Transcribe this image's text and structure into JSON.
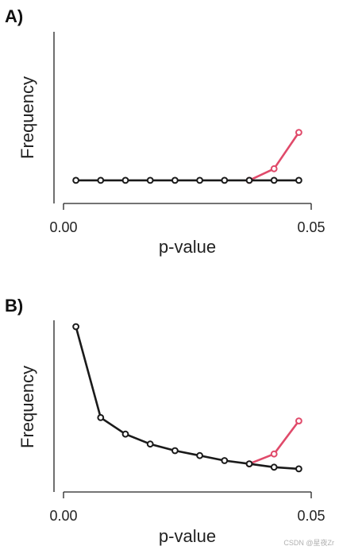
{
  "charts": [
    {
      "panel_label": "A)",
      "type": "line",
      "xlabel": "p-value",
      "ylabel": "Frequency",
      "xticks": [
        {
          "value": 0.0,
          "label": "0.00"
        },
        {
          "value": 0.05,
          "label": "0.05"
        }
      ],
      "xlim": [
        0.0,
        0.05
      ],
      "ylim": [
        0,
        10
      ],
      "series": [
        {
          "color": "#e04a6a",
          "x": [
            0.0375,
            0.0425,
            0.0475
          ],
          "y": [
            1.4,
            2.1,
            4.3
          ]
        },
        {
          "color": "#1a1a1a",
          "x": [
            0.0025,
            0.0075,
            0.0125,
            0.0175,
            0.0225,
            0.0275,
            0.0325,
            0.0375,
            0.0425,
            0.0475
          ],
          "y": [
            1.4,
            1.4,
            1.4,
            1.4,
            1.4,
            1.4,
            1.4,
            1.4,
            1.4,
            1.4
          ]
        }
      ]
    },
    {
      "panel_label": "B)",
      "type": "line",
      "xlabel": "p-value",
      "ylabel": "Frequency",
      "xticks": [
        {
          "value": 0.0,
          "label": "0.00"
        },
        {
          "value": 0.05,
          "label": "0.05"
        }
      ],
      "xlim": [
        0.0,
        0.05
      ],
      "ylim": [
        0,
        10
      ],
      "series": [
        {
          "color": "#e04a6a",
          "x": [
            0.0375,
            0.0425,
            0.0475
          ],
          "y": [
            1.7,
            2.3,
            4.3
          ]
        },
        {
          "color": "#1a1a1a",
          "x": [
            0.0025,
            0.0075,
            0.0125,
            0.0175,
            0.0225,
            0.0275,
            0.0325,
            0.0375,
            0.0425,
            0.0475
          ],
          "y": [
            10.0,
            4.5,
            3.5,
            2.9,
            2.5,
            2.2,
            1.9,
            1.7,
            1.5,
            1.4
          ]
        }
      ]
    }
  ],
  "watermark": "CSDN @星夜Zr"
}
